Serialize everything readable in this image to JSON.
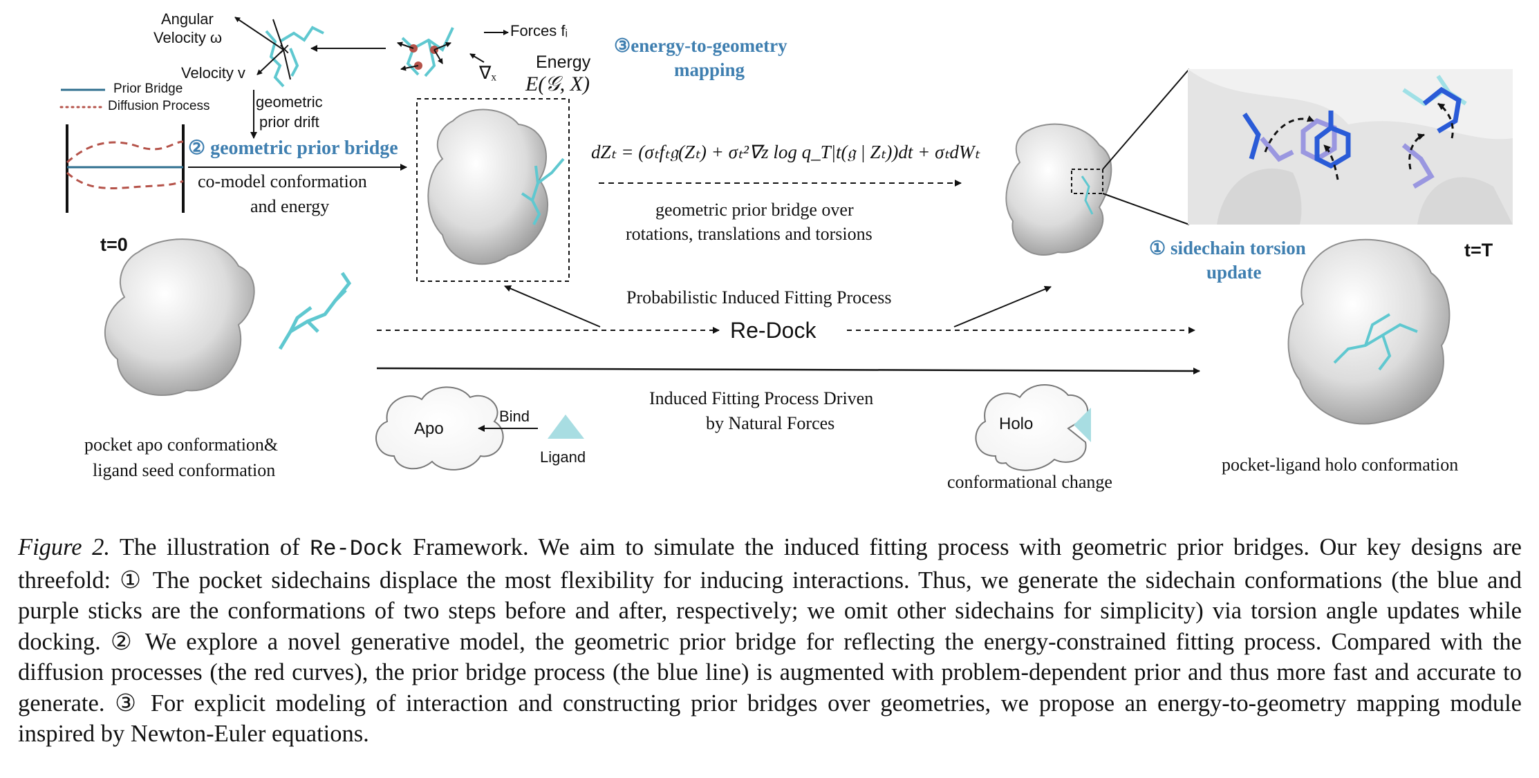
{
  "figure": {
    "top_left": {
      "angular_velocity_line1": "Angular",
      "angular_velocity_line2": "Velocity ω",
      "velocity": "Velocity v",
      "forces": "Forces fᵢ",
      "energy": "Energy",
      "energy_expr": "E(𝒢, X)",
      "nabla": "∇ₓ",
      "geometric_prior_drift_line1": "geometric",
      "geometric_prior_drift_line2": "prior drift",
      "legend_prior_bridge": "Prior Bridge",
      "legend_diffusion": "Diffusion Process",
      "geometric_prior_bridge_title": "② geometric prior bridge",
      "comodel_line1": "co-model conformation",
      "comodel_line2": "and energy"
    },
    "energy_to_geometry": {
      "line1": "③energy-to-geometry",
      "line2": "mapping"
    },
    "sde": {
      "equation": "dZₜ = (σₜfₜ𝔤(Zₜ) + σₜ²∇z log q_T|t(𝔤 | Zₜ))dt + σₜdWₜ",
      "desc_line1": "geometric prior bridge over",
      "desc_line2": "rotations, translations and torsions"
    },
    "sidechain": {
      "line1": "① sidechain torsion",
      "line2": "update"
    },
    "t0": "t=0",
    "tT": "t=T",
    "probabilistic": "Probabilistic Induced Fitting Process",
    "redock": "Re-Dock",
    "induced_line1": "Induced Fitting Process Driven",
    "induced_line2": "by Natural Forces",
    "apo": "Apo",
    "bind": "Bind",
    "ligand": "Ligand",
    "holo": "Holo",
    "conformational_change": "conformational change",
    "apo_caption_line1": "pocket apo conformation&",
    "apo_caption_line2": "ligand seed conformation",
    "holo_caption": "pocket-ligand holo conformation"
  },
  "caption": {
    "label": "Figure 2.",
    "pre": " The illustration of ",
    "name": "Re-Dock",
    "post": " Framework. We aim to simulate the induced fitting process with geometric prior bridges. Our key designs are threefold: ① The pocket sidechains displace the most flexibility for inducing interactions. Thus, we generate the sidechain conformations (the blue and purple sticks are the conformations of two steps before and after, respectively; we omit other sidechains for simplicity) via torsion angle updates while docking. ② We explore a novel generative model, the geometric prior bridge for reflecting the energy-constrained fitting process. Compared with the diffusion processes (the red curves), the prior bridge process (the blue line) is augmented with problem-dependent prior and thus more fast and accurate to generate. ③ For explicit modeling of interaction and constructing prior bridges over geometries, we propose an energy-to-geometry mapping module inspired by Newton-Euler equations."
  },
  "colors": {
    "accent_blue": "#3f7fb0",
    "prior_bridge_line": "#2f6f8f",
    "diffusion_red": "#b5534a",
    "ligand_cyan": "#5fc8d0",
    "surface_gray": "#e2e2e2",
    "sidechain_blue": "#2a5bd7",
    "sidechain_purple": "#9a97e0"
  }
}
